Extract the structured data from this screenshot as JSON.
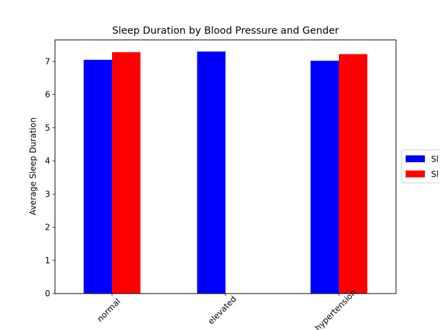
{
  "chart_data": {
    "type": "bar",
    "title": "Sleep Duration by Blood Pressure and Gender",
    "xlabel": "",
    "ylabel": "Average Sleep Duration",
    "categories": [
      "normal",
      "elevated",
      "hypertension"
    ],
    "yticks": [
      "0",
      "1",
      "2",
      "3",
      "4",
      "5",
      "6",
      "7"
    ],
    "ylim": [
      0,
      7.65
    ],
    "grid": false,
    "legend_position": "center-right",
    "series": [
      {
        "name": "Sl",
        "color": "#0000ff",
        "values": [
          7.05,
          7.3,
          7.02
        ]
      },
      {
        "name": "Sl",
        "color": "#ff0000",
        "values": [
          7.28,
          null,
          7.22
        ]
      }
    ]
  }
}
